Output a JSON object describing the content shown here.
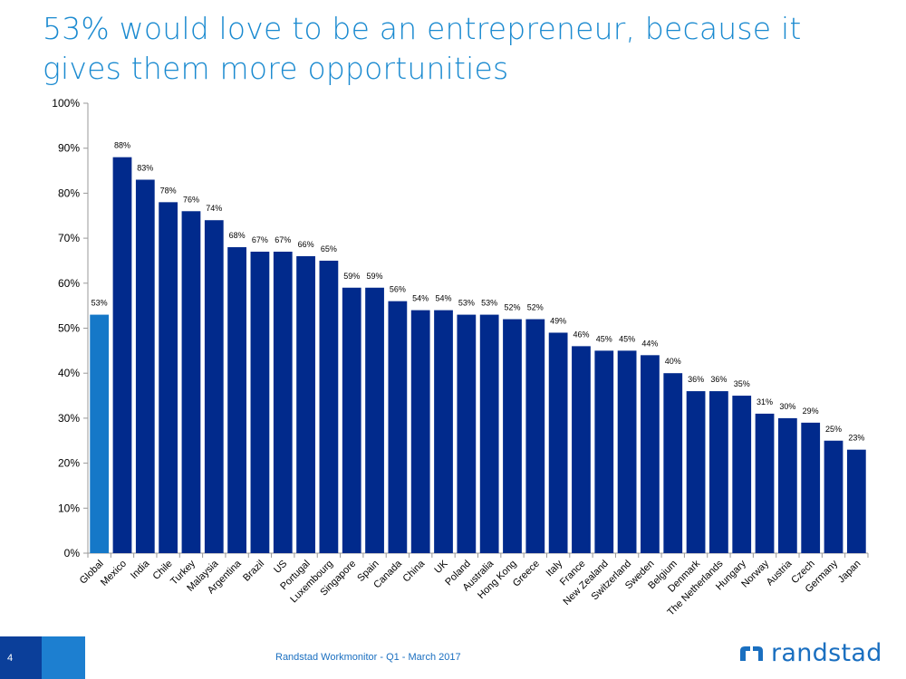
{
  "title": "53%  would love to be an entrepreneur, because it gives them more opportunities",
  "footer": {
    "page_number": "4",
    "source": "Randstad Workmonitor - Q1 - March 2017",
    "brand": "randstad"
  },
  "colors": {
    "global_bar": "#1578c8",
    "country_bar": "#012a8c",
    "title": "#1a8ad0",
    "footer_dark": "#0b3f9a",
    "footer_light": "#1d7fd0"
  },
  "chart_data": {
    "type": "bar",
    "categories": [
      "Global",
      "Mexico",
      "India",
      "Chile",
      "Turkey",
      "Malaysia",
      "Argentina",
      "Brazil",
      "US",
      "Portugal",
      "Luxembourg",
      "Singapore",
      "Spain",
      "Canada",
      "China",
      "UK",
      "Poland",
      "Australia",
      "Hong Kong",
      "Greece",
      "Italy",
      "France",
      "New Zealand",
      "Switzerland",
      "Sweden",
      "Belgium",
      "Denmark",
      "The Netherlands",
      "Hungary",
      "Norway",
      "Austria",
      "Czech",
      "Germany",
      "Japan"
    ],
    "values": [
      53,
      88,
      83,
      78,
      76,
      74,
      68,
      67,
      67,
      66,
      65,
      59,
      59,
      56,
      54,
      54,
      53,
      53,
      52,
      52,
      49,
      46,
      45,
      45,
      44,
      40,
      36,
      36,
      35,
      31,
      30,
      29,
      25,
      23
    ],
    "value_labels": [
      "53%",
      "88%",
      "83%",
      "78%",
      "76%",
      "74%",
      "68%",
      "67%",
      "67%",
      "66%",
      "65%",
      "59%",
      "59%",
      "56%",
      "54%",
      "54%",
      "53%",
      "53%",
      "52%",
      "52%",
      "49%",
      "46%",
      "45%",
      "45%",
      "44%",
      "40%",
      "36%",
      "36%",
      "35%",
      "31%",
      "30%",
      "29%",
      "25%",
      "23%"
    ],
    "highlight": "Global",
    "ylim": [
      0,
      100
    ],
    "yticks": [
      "0%",
      "10%",
      "20%",
      "30%",
      "40%",
      "50%",
      "60%",
      "70%",
      "80%",
      "90%",
      "100%"
    ],
    "xlabel": "",
    "ylabel": "",
    "grid": false,
    "legend": "none"
  }
}
